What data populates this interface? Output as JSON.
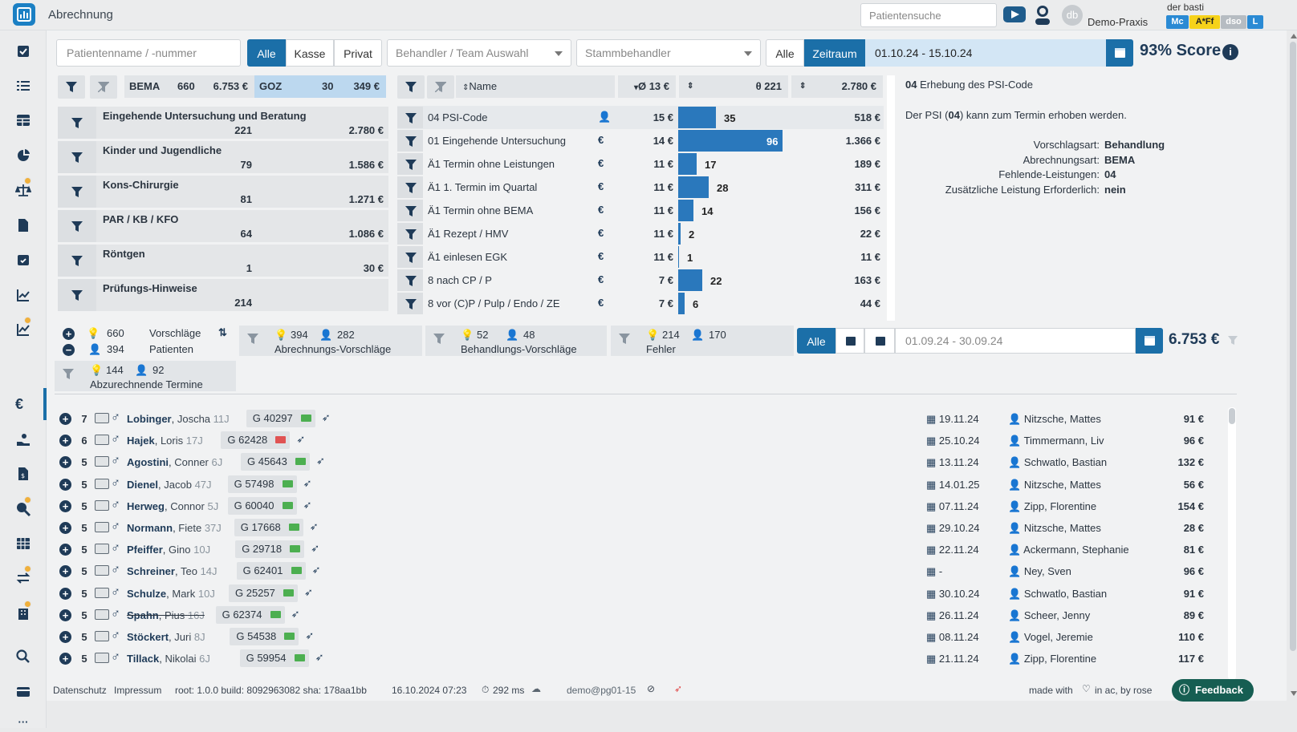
{
  "header": {
    "title": "Abrechnung",
    "patient_search_placeholder": "Patientensuche",
    "avatar_initials": "db",
    "user_name": "der basti",
    "praxis_name": "Demo-Praxis",
    "chips": [
      {
        "label": "Mc",
        "bg": "#2a8ad4",
        "fg": "#ffffff"
      },
      {
        "label": "A*Ff",
        "bg": "#f6d21a",
        "fg": "#222222"
      },
      {
        "label": "dso",
        "bg": "#b6bcc2",
        "fg": "#ffffff"
      },
      {
        "label": "L",
        "bg": "#2a8ad4",
        "fg": "#ffffff"
      }
    ]
  },
  "toolbar": {
    "patient_placeholder": "Patientenname / -nummer",
    "filter_buttons": [
      "Alle",
      "Kasse",
      "Privat"
    ],
    "behandler_placeholder": "Behandler / Team Auswahl",
    "stamm_placeholder": "Stammbehandler",
    "range_buttons": [
      "Alle",
      "Zeitraum"
    ],
    "date_range": "01.10.24 - 15.10.24",
    "score": "93% Score",
    "info_icon": "i"
  },
  "summary": {
    "bema_label": "BEMA",
    "bema_count": "660",
    "bema_amount": "6.753 €",
    "goz_label": "GOZ",
    "goz_count": "30",
    "goz_amount": "349 €"
  },
  "columns": {
    "name": "Name",
    "avg": "Ø 13 €",
    "count": "θ 221",
    "total": "2.780 €"
  },
  "categories": [
    {
      "name": "Eingehende Untersuchung und Beratung",
      "count": "221",
      "amount": "2.780 €"
    },
    {
      "name": "Kinder und Jugendliche",
      "count": "79",
      "amount": "1.586 €"
    },
    {
      "name": "Kons-Chirurgie",
      "count": "81",
      "amount": "1.271 €"
    },
    {
      "name": "PAR / KB / KFO",
      "count": "64",
      "amount": "1.086 €"
    },
    {
      "name": "Röntgen",
      "count": "1",
      "amount": "30 €"
    },
    {
      "name": "Prüfungs-Hinweise",
      "count": "214",
      "amount": ""
    }
  ],
  "rules": [
    {
      "name": "04 PSI-Code",
      "type_icon": "user-icon",
      "avg": "15 €",
      "count": "35",
      "count_value": 35,
      "total": "518 €"
    },
    {
      "name": "01 Eingehende Untersuchung",
      "type_icon": "euro-icon",
      "avg": "14 €",
      "count": "96",
      "count_value": 96,
      "total": "1.366 €"
    },
    {
      "name": "Ä1 Termin ohne Leistungen",
      "type_icon": "euro-icon",
      "avg": "11 €",
      "count": "17",
      "count_value": 17,
      "total": "189 €"
    },
    {
      "name": "Ä1 1. Termin im Quartal",
      "type_icon": "euro-icon",
      "avg": "11 €",
      "count": "28",
      "count_value": 28,
      "total": "311 €"
    },
    {
      "name": "Ä1 Termin ohne BEMA",
      "type_icon": "euro-icon",
      "avg": "11 €",
      "count": "14",
      "count_value": 14,
      "total": "156 €"
    },
    {
      "name": "Ä1 Rezept / HMV",
      "type_icon": "euro-icon",
      "avg": "11 €",
      "count": "2",
      "count_value": 2,
      "total": "22 €"
    },
    {
      "name": "Ä1 einlesen EGK",
      "type_icon": "euro-icon",
      "avg": "11 €",
      "count": "1",
      "count_value": 1,
      "total": "11 €"
    },
    {
      "name": "8 nach CP / P",
      "type_icon": "euro-icon",
      "avg": "7 €",
      "count": "22",
      "count_value": 22,
      "total": "163 €"
    },
    {
      "name": "8 vor (C)P / Pulp / Endo / ZE",
      "type_icon": "euro-icon",
      "avg": "7 €",
      "count": "6",
      "count_value": 6,
      "total": "44 €"
    }
  ],
  "detail": {
    "title_code": "04",
    "title_rest": "Erhebung des PSI-Code",
    "desc_pre": "Der PSI (",
    "desc_code": "04",
    "desc_post": ") kann zum Termin erhoben werden.",
    "fields": [
      {
        "label": "Vorschlagsart:",
        "value": "Behandlung"
      },
      {
        "label": "Abrechnungsart:",
        "value": "BEMA"
      },
      {
        "label": "Fehlende-Leistungen:",
        "value": "04"
      },
      {
        "label": "Zusätzliche Leistung Erforderlich:",
        "value": "nein"
      }
    ]
  },
  "suggestions": {
    "vorschlaege_count": "660",
    "vorschlaege_label": "Vorschläge",
    "patienten_count": "394",
    "patienten_label": "Patienten",
    "groups": [
      {
        "a": "394",
        "b": "282",
        "label": "Abrechnungs-Vorschläge"
      },
      {
        "a": "52",
        "b": "48",
        "label": "Behandlungs-Vorschläge"
      },
      {
        "a": "214",
        "b": "170",
        "label": "Fehler"
      },
      {
        "a": "144",
        "b": "92",
        "label": "Abzurechnende Termine"
      }
    ],
    "alle_button": "Alle",
    "date_range": "01.09.24 - 30.09.24",
    "total": "6.753 €"
  },
  "patients": [
    {
      "num": "7",
      "last": "Lobinger",
      "first": "Joscha",
      "age": "11J",
      "g": "G  40297",
      "gcolor": "#4caf50",
      "date": "19.11.24",
      "doctor": "Nitzsche, Mattes",
      "amount": "91 €"
    },
    {
      "num": "6",
      "last": "Hajek",
      "first": "Loris",
      "age": "17J",
      "g": "G  62428",
      "gcolor": "#e05353",
      "date": "25.10.24",
      "doctor": "Timmermann, Liv",
      "amount": "96 €"
    },
    {
      "num": "5",
      "last": "Agostini",
      "first": "Conner",
      "age": "6J",
      "g": "G  45643",
      "gcolor": "#4caf50",
      "date": "13.11.24",
      "doctor": "Schwatlo, Bastian",
      "amount": "132 €"
    },
    {
      "num": "5",
      "last": "Dienel",
      "first": "Jacob",
      "age": "47J",
      "g": "G  57498",
      "gcolor": "#4caf50",
      "date": "14.01.25",
      "doctor": "Nitzsche, Mattes",
      "amount": "56 €"
    },
    {
      "num": "5",
      "last": "Herweg",
      "first": "Connor",
      "age": "5J",
      "g": "G  60040",
      "gcolor": "#4caf50",
      "date": "07.11.24",
      "doctor": "Zipp, Florentine",
      "amount": "154 €"
    },
    {
      "num": "5",
      "last": "Normann",
      "first": "Fiete",
      "age": "37J",
      "g": "G  17668",
      "gcolor": "#4caf50",
      "date": "29.10.24",
      "doctor": "Nitzsche, Mattes",
      "amount": "28 €"
    },
    {
      "num": "5",
      "last": "Pfeiffer",
      "first": "Gino",
      "age": "10J",
      "g": "G  29718",
      "gcolor": "#4caf50",
      "date": "22.11.24",
      "doctor": "Ackermann, Stephanie",
      "amount": "81 €"
    },
    {
      "num": "5",
      "last": "Schreiner",
      "first": "Teo",
      "age": "14J",
      "g": "G  62401",
      "gcolor": "#4caf50",
      "date": "-",
      "doctor": "Ney, Sven",
      "amount": "96 €"
    },
    {
      "num": "5",
      "last": "Schulze",
      "first": "Mark",
      "age": "10J",
      "g": "G  25257",
      "gcolor": "#4caf50",
      "date": "30.10.24",
      "doctor": "Schwatlo, Bastian",
      "amount": "91 €"
    },
    {
      "num": "5",
      "last": "Spahn",
      "first": "Pius",
      "age": "16J",
      "g": "G  62374",
      "gcolor": "#4caf50",
      "date": "26.11.24",
      "doctor": "Scheer, Jenny",
      "amount": "89 €"
    },
    {
      "num": "5",
      "last": "Stöckert",
      "first": "Juri",
      "age": "8J",
      "g": "G  54538",
      "gcolor": "#4caf50",
      "date": "08.11.24",
      "doctor": "Vogel, Jeremie",
      "amount": "110 €"
    },
    {
      "num": "5",
      "last": "Tillack",
      "first": "Nikolai",
      "age": "6J",
      "g": "G  59954",
      "gcolor": "#4caf50",
      "date": "21.11.24",
      "doctor": "Zipp, Florentine",
      "amount": "117 €"
    }
  ],
  "footer": {
    "datenschutz": "Datenschutz",
    "impressum": "Impressum",
    "build": "root: 1.0.0 build: 8092963082 sha: 178aa1bb",
    "timestamp": "16.10.2024 07:23",
    "latency": "292 ms",
    "email": "demo@pg01-15",
    "made_with": "made with",
    "in_ac": "in ac, by rose",
    "feedback": "Feedback"
  },
  "colors": {
    "accent": "#1b6fa8",
    "bar": "#2a78bc",
    "navy": "#1f3b58",
    "feedback": "#165e52"
  }
}
